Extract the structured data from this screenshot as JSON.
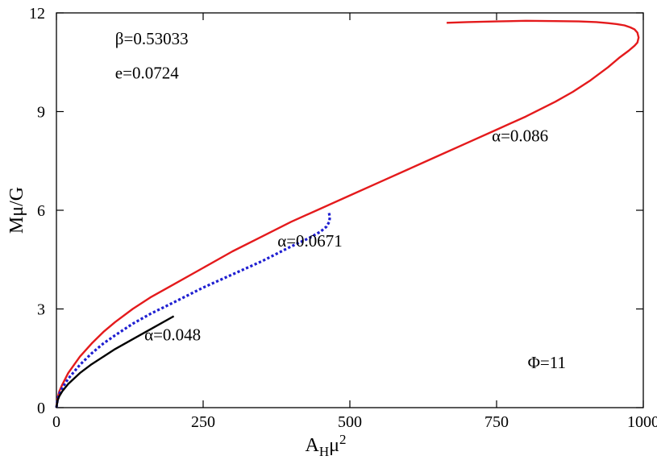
{
  "chart_data": {
    "type": "line",
    "xlabel_main": "A",
    "xlabel_sub": "H",
    "xlabel_mu": "μ",
    "xlabel_sup": "2",
    "ylabel": "Mμ/G",
    "xlim": [
      0,
      1000
    ],
    "ylim": [
      0,
      12
    ],
    "xticks": [
      "0",
      "250",
      "500",
      "750",
      "1000"
    ],
    "yticks": [
      "0",
      "3",
      "6",
      "9",
      "12"
    ],
    "grid": false,
    "annotations": [
      {
        "text": "β=0.53033",
        "x": 100,
        "y": 11.05
      },
      {
        "text": "e=0.0724",
        "x": 100,
        "y": 10.0
      },
      {
        "text": "Φ=11",
        "x": 803,
        "y": 1.2
      }
    ],
    "series": [
      {
        "name": "α=0.086",
        "color": "#e41a1c",
        "dash": "solid",
        "label_pos": {
          "x": 790,
          "y": 8.1
        },
        "x": [
          0,
          2,
          5,
          10,
          20,
          40,
          60,
          80,
          100,
          130,
          160,
          200,
          250,
          300,
          350,
          400,
          450,
          500,
          550,
          600,
          650,
          700,
          750,
          800,
          850,
          880,
          910,
          940,
          960,
          975,
          985,
          990,
          992,
          990,
          985,
          978,
          968,
          955,
          940,
          920,
          890,
          850,
          800,
          750,
          700,
          665
        ],
        "y": [
          0.0,
          0.3,
          0.5,
          0.7,
          1.05,
          1.55,
          1.95,
          2.3,
          2.6,
          3.0,
          3.35,
          3.75,
          4.25,
          4.75,
          5.2,
          5.65,
          6.05,
          6.45,
          6.85,
          7.25,
          7.65,
          8.05,
          8.45,
          8.85,
          9.3,
          9.6,
          9.95,
          10.35,
          10.65,
          10.85,
          11.0,
          11.1,
          11.25,
          11.4,
          11.5,
          11.56,
          11.62,
          11.66,
          11.69,
          11.72,
          11.74,
          11.75,
          11.76,
          11.74,
          11.72,
          11.7
        ]
      },
      {
        "name": "α=0.0671",
        "color": "#1f1fd1",
        "dash": "dotted",
        "label_pos": {
          "x": 432,
          "y": 4.9
        },
        "x": [
          0,
          2,
          5,
          10,
          20,
          40,
          60,
          80,
          100,
          130,
          160,
          200,
          250,
          300,
          350,
          400,
          430,
          450,
          460,
          465,
          466,
          464
        ],
        "y": [
          0.0,
          0.25,
          0.42,
          0.6,
          0.88,
          1.3,
          1.65,
          1.95,
          2.2,
          2.55,
          2.85,
          3.2,
          3.65,
          4.05,
          4.45,
          4.9,
          5.15,
          5.35,
          5.5,
          5.65,
          5.8,
          5.95
        ]
      },
      {
        "name": "α=0.048",
        "color": "#000000",
        "dash": "solid",
        "label_pos": {
          "x": 198,
          "y": 2.05
        },
        "x": [
          0,
          2,
          5,
          10,
          20,
          40,
          60,
          80,
          100,
          130,
          160,
          200
        ],
        "y": [
          0.0,
          0.22,
          0.35,
          0.5,
          0.72,
          1.05,
          1.32,
          1.55,
          1.78,
          2.08,
          2.38,
          2.78
        ]
      }
    ]
  }
}
